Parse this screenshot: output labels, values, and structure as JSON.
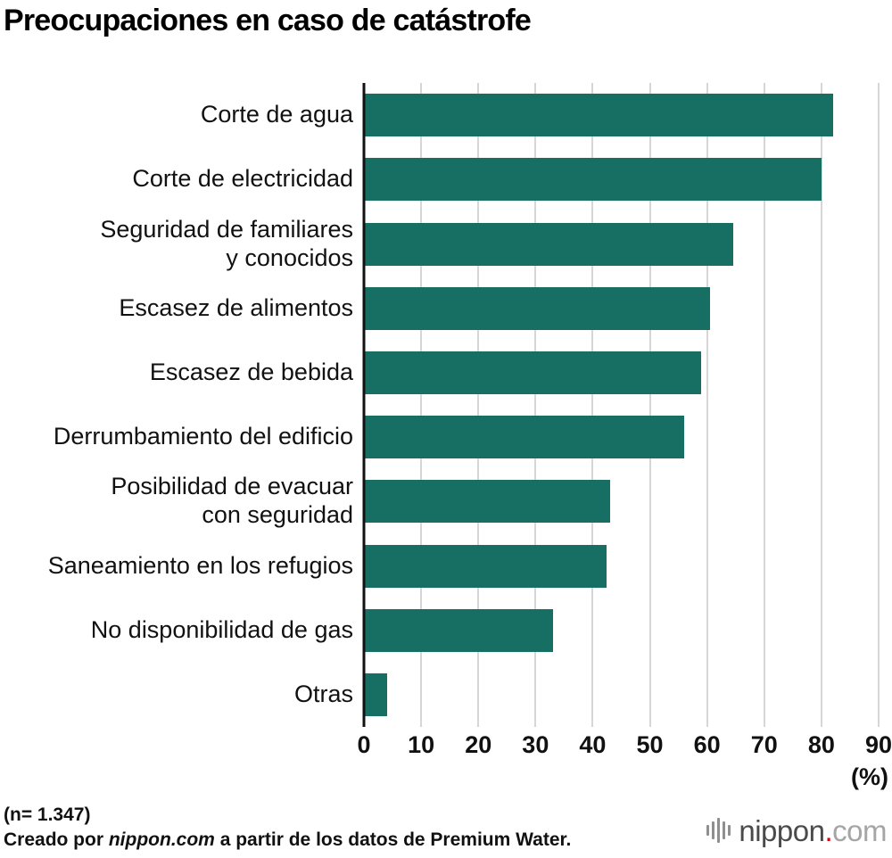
{
  "title": "Preocupaciones en caso de catástrofe",
  "chart_data": {
    "type": "bar",
    "orientation": "horizontal",
    "title": "Preocupaciones en caso de catástrofe",
    "categories": [
      "Corte de agua",
      "Corte de electricidad",
      "Seguridad de familiares\ny conocidos",
      "Escasez de alimentos",
      "Escasez de bebida",
      "Derrumbamiento del edificio",
      "Posibilidad de evacuar\ncon seguridad",
      "Saneamiento en los refugios",
      "No disponibilidad de gas",
      "Otras"
    ],
    "values": [
      82,
      80,
      64.5,
      60.5,
      59,
      56,
      43,
      42.5,
      33,
      4
    ],
    "xlim": [
      0,
      90
    ],
    "ticks": [
      0,
      10,
      20,
      30,
      40,
      50,
      60,
      70,
      80,
      90
    ],
    "unit_label": "(%)",
    "bar_color": "#176e63",
    "gridline_color": "#d6d6d6",
    "grid": true,
    "legend": "none"
  },
  "footer": {
    "n_label": "(n= 1.347)",
    "credit_prefix": "Creado por ",
    "credit_source": "nippon.com",
    "credit_suffix": " a partir de los datos de Premium Water.",
    "logo": {
      "main": "nippon",
      "dot": ".",
      "com": "com"
    }
  }
}
